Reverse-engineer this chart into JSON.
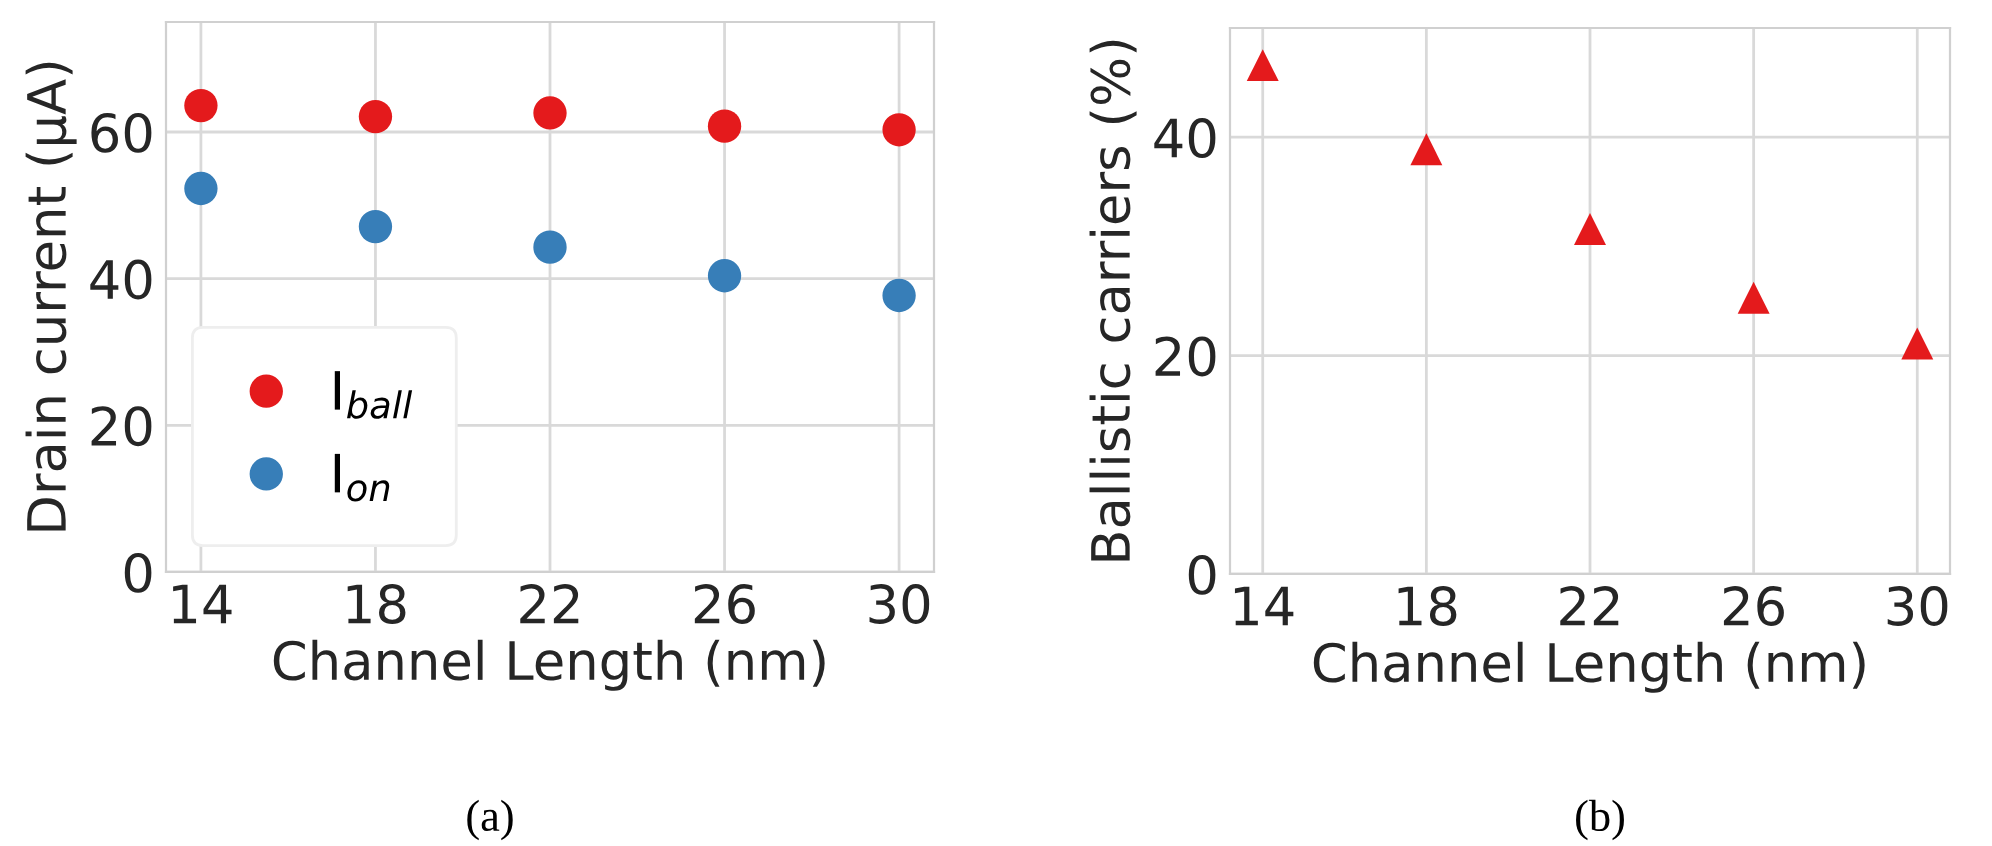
{
  "chart_data": [
    {
      "type": "scatter",
      "xlabel": "Channel Length (nm)",
      "ylabel": "Drain current (μA)",
      "x": [
        14,
        18,
        22,
        26,
        30
      ],
      "xlim": [
        13.2,
        30.8
      ],
      "xticks": [
        14,
        18,
        22,
        26,
        30
      ],
      "ylim": [
        0,
        75
      ],
      "yticks": [
        0,
        20,
        40,
        60
      ],
      "grid": true,
      "legend": "bottom left",
      "marker": "circle",
      "series": [
        {
          "name": "I$_{ball}$",
          "color": "#e41a1c",
          "values": [
            63.6,
            62.1,
            62.6,
            60.8,
            60.3
          ]
        },
        {
          "name": "I$_{on}$",
          "color": "#377eb8",
          "values": [
            52.3,
            47.1,
            44.3,
            40.4,
            37.7
          ]
        }
      ],
      "annotations": [
        "(a)"
      ]
    },
    {
      "type": "scatter",
      "xlabel": "Channel Length (nm)",
      "ylabel": "Ballistic carriers (%)",
      "x": [
        14,
        18,
        22,
        26,
        30
      ],
      "xlim": [
        13.2,
        30.8
      ],
      "xticks": [
        14,
        18,
        22,
        26,
        30
      ],
      "ylim": [
        0,
        50
      ],
      "yticks": [
        0,
        20,
        40
      ],
      "grid": true,
      "marker": "triangle",
      "series": [
        {
          "color": "#e41a1c",
          "values": [
            46.6,
            38.9,
            31.6,
            25.3,
            21.1
          ]
        }
      ],
      "annotations": [
        "(b)"
      ]
    }
  ]
}
